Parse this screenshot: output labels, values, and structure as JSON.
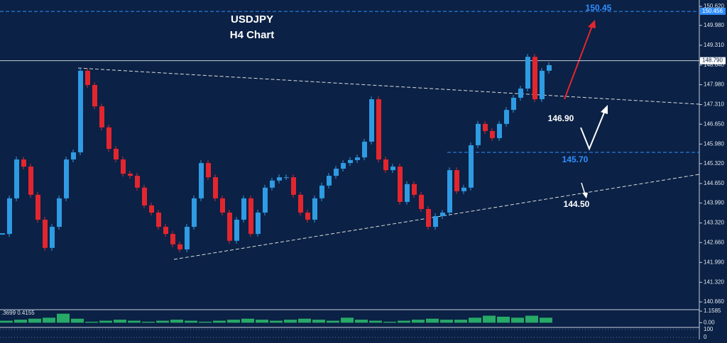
{
  "chart_data": {
    "type": "candlestick",
    "title": "USDJPY",
    "subtitle": "H4 Chart",
    "up_color": "#2f9be3",
    "down_color": "#e3262e",
    "values": [
      142.95,
      144.15,
      145.46,
      145.22,
      144.27,
      143.43,
      142.48,
      143.19,
      144.15,
      145.46,
      145.7,
      148.45,
      147.97,
      147.25,
      146.54,
      145.82,
      145.46,
      144.98,
      144.91,
      144.51,
      143.91,
      143.67,
      143.19,
      142.95,
      142.6,
      142.43,
      143.19,
      144.15,
      145.34,
      144.86,
      144.15,
      143.67,
      142.72,
      143.43,
      144.15,
      142.95,
      143.67,
      144.51,
      144.75,
      144.86,
      144.86,
      144.27,
      143.67,
      143.43,
      144.15,
      144.58,
      144.91,
      145.15,
      145.34,
      145.44,
      145.53,
      146.06,
      147.49,
      145.46,
      145.1,
      145.22,
      144.03,
      144.63,
      144.27,
      143.79,
      143.19,
      143.55,
      143.67,
      145.1,
      144.39,
      144.51,
      145.94,
      146.66,
      146.42,
      146.18,
      146.66,
      147.13,
      147.54,
      147.85,
      148.92,
      147.49,
      148.45,
      148.64
    ],
    "ylim": [
      140.66,
      150.62
    ],
    "yticks": [
      {
        "value": 150.62,
        "label": "150.620"
      },
      {
        "value": 149.98,
        "label": "149.980"
      },
      {
        "value": 149.31,
        "label": "149.310"
      },
      {
        "value": 148.64,
        "label": "148.640"
      },
      {
        "value": 147.98,
        "label": "147.980"
      },
      {
        "value": 147.31,
        "label": "147.310"
      },
      {
        "value": 146.65,
        "label": "146.650"
      },
      {
        "value": 145.98,
        "label": "145.980"
      },
      {
        "value": 145.32,
        "label": "145.320"
      },
      {
        "value": 144.65,
        "label": "144.650"
      },
      {
        "value": 143.99,
        "label": "143.990"
      },
      {
        "value": 143.32,
        "label": "143.320"
      },
      {
        "value": 142.66,
        "label": "142.660"
      },
      {
        "value": 141.99,
        "label": "141.990"
      },
      {
        "value": 141.32,
        "label": "141.320"
      },
      {
        "value": 140.66,
        "label": "140.660"
      }
    ],
    "current_price": {
      "value": 148.79,
      "label": "148.790"
    },
    "level_tag": {
      "value": 150.456,
      "label": "150.456"
    },
    "annotations": [
      {
        "label": "150.45",
        "value": 150.45,
        "color": "#2f8fff",
        "line": true
      },
      {
        "label": "146.90",
        "value": 146.9,
        "color": "#ffffff",
        "line": false
      },
      {
        "label": "145.70",
        "value": 145.7,
        "color": "#2f8fff",
        "line": true
      },
      {
        "label": "144.50",
        "value": 144.5,
        "color": "#ffffff",
        "line": false
      }
    ],
    "oscillator": {
      "header": ".3699 0.4155",
      "color": "#2ecc71",
      "values": [
        0.2,
        0.3,
        0.4,
        0.5,
        0.9,
        0.4,
        0.1,
        0.2,
        0.3,
        0.2,
        0.1,
        0.2,
        0.3,
        0.2,
        0.1,
        0.2,
        0.3,
        0.4,
        0.3,
        0.2,
        0.3,
        0.4,
        0.3,
        0.2,
        0.5,
        0.3,
        0.2,
        0.1,
        0.2,
        0.3,
        0.4,
        0.3,
        0.3,
        0.5,
        0.7,
        0.6,
        0.5,
        0.7,
        0.5
      ],
      "ylim": [
        -0.4,
        1.1585
      ],
      "yticks": [
        1.1585,
        {
          "value": 0,
          "label": "0.00"
        }
      ]
    },
    "lower_panel": {
      "yticks": [
        100,
        0
      ]
    }
  }
}
